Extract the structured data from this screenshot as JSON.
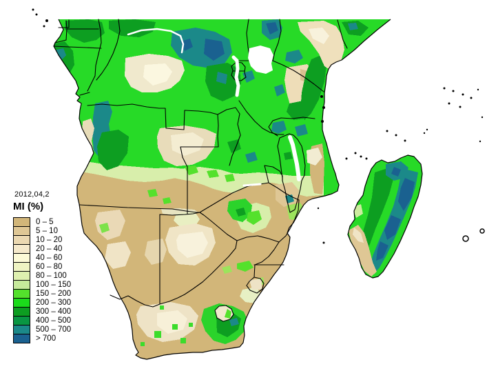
{
  "map": {
    "variable": "MI (%)",
    "date": "2012,04,2",
    "type": "choropleth-raster"
  },
  "legend": {
    "date": "2012,04,2",
    "title": "MI (%)",
    "classes": [
      {
        "label": "0 – 5",
        "color": "#d2b679"
      },
      {
        "label": "5 – 10",
        "color": "#dfc795"
      },
      {
        "label": "10 – 20",
        "color": "#ebd8b1"
      },
      {
        "label": "20 – 40",
        "color": "#f5e9cb"
      },
      {
        "label": "40 – 60",
        "color": "#fcfad7"
      },
      {
        "label": "60 – 80",
        "color": "#eff4c3"
      },
      {
        "label": "80 – 100",
        "color": "#def0af"
      },
      {
        "label": "100 – 150",
        "color": "#c6ea9b"
      },
      {
        "label": "150 – 200",
        "color": "#54e12c"
      },
      {
        "label": "200 – 300",
        "color": "#1bdc1b"
      },
      {
        "label": "300 – 400",
        "color": "#0d9e21"
      },
      {
        "label": "400 – 500",
        "color": "#099643"
      },
      {
        "label": "500 – 700",
        "color": "#1b8989"
      },
      {
        "label": "> 700",
        "color": "#1a6190"
      }
    ]
  }
}
